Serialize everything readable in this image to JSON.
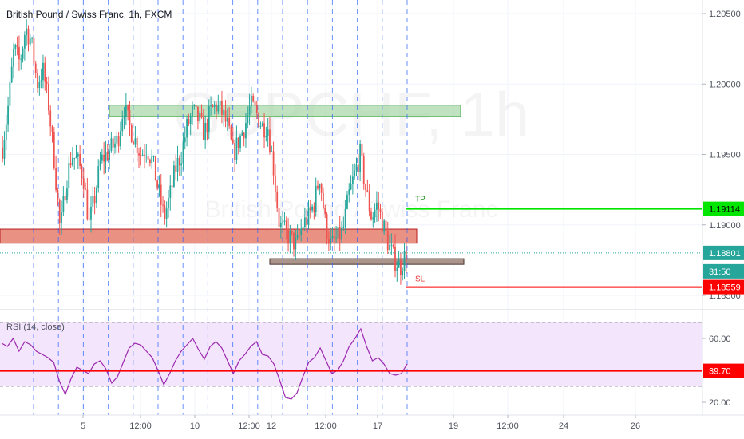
{
  "header": {
    "title": "British Pound / Swiss Franc, 1h, FXCM"
  },
  "watermark": {
    "symbol": "GBPCHF, 1h",
    "name": "British Pound / Swiss Franc"
  },
  "colors": {
    "up": "#26a69a",
    "down": "#ef5350",
    "tp": "#00e600",
    "sl": "#ff0000",
    "rsi_line": "#9c27b0",
    "rsi_band": "#f3e5fb",
    "current": "#26a69a",
    "resistance_fill": "#a5d6a7",
    "support_fill": "#e57f6f",
    "lower_box_fill": "#a1887f"
  },
  "chart_data": [
    {
      "type": "candlestick",
      "symbol": "GBPCHF",
      "interval": "1h",
      "ylim": [
        1.1835,
        1.2065
      ],
      "y_ticks": [
        "1.20500",
        "1.20000",
        "1.19500",
        "1.19000",
        "1.18500"
      ],
      "x_ticks": [
        "5",
        "12:00",
        "10",
        "12:00",
        "12",
        "12:00",
        "17",
        "19",
        "12:00",
        "24",
        "26"
      ],
      "price_path": [
        1.1955,
        1.1985,
        1.2025,
        1.2015,
        1.204,
        1.203,
        1.2,
        1.201,
        1.1985,
        1.1945,
        1.1895,
        1.193,
        1.195,
        1.1945,
        1.1935,
        1.19,
        1.192,
        1.1945,
        1.195,
        1.1955,
        1.196,
        1.1985,
        1.197,
        1.196,
        1.195,
        1.1955,
        1.1945,
        1.1925,
        1.1905,
        1.192,
        1.194,
        1.195,
        1.197,
        1.198,
        1.1975,
        1.1965,
        1.198,
        1.1985,
        1.198,
        1.197,
        1.195,
        1.196,
        1.197,
        1.1985,
        1.198,
        1.197,
        1.197,
        1.194,
        1.19,
        1.1895,
        1.189,
        1.1885,
        1.19,
        1.1905,
        1.1915,
        1.1935,
        1.19,
        1.1885,
        1.189,
        1.1895,
        1.192,
        1.1935,
        1.195,
        1.1925,
        1.1905,
        1.1915,
        1.19,
        1.1885,
        1.1875,
        1.187,
        1.188
      ],
      "zones": [
        {
          "name": "resistance",
          "from": 1.1977,
          "to": 1.1985
        },
        {
          "name": "support",
          "from": 1.1887,
          "to": 1.1897
        },
        {
          "name": "lower-support",
          "from": 1.1872,
          "to": 1.1876
        }
      ],
      "levels": [
        {
          "name": "TP",
          "value": 1.19114,
          "label": "1.19114",
          "text": "TP"
        },
        {
          "name": "SL",
          "value": 1.18559,
          "label": "1.18559",
          "text": "SL"
        },
        {
          "name": "current",
          "value": 1.18801,
          "label": "1.18801"
        }
      ],
      "countdown": "31:50"
    },
    {
      "type": "line",
      "title": "RSI (14, close)",
      "ylim": [
        15,
        75
      ],
      "y_ticks": [
        "60.00",
        "20.00"
      ],
      "band": [
        30,
        70
      ],
      "level": {
        "value": 39.7,
        "label": "39.70"
      },
      "values": [
        57,
        55,
        60,
        52,
        58,
        56,
        52,
        50,
        48,
        45,
        33,
        25,
        35,
        42,
        40,
        38,
        44,
        46,
        41,
        32,
        36,
        45,
        54,
        57,
        56,
        52,
        48,
        40,
        31,
        38,
        46,
        52,
        56,
        60,
        53,
        47,
        55,
        58,
        54,
        46,
        38,
        46,
        50,
        55,
        58,
        50,
        49,
        44,
        34,
        23,
        22,
        26,
        36,
        45,
        48,
        54,
        46,
        38,
        40,
        46,
        55,
        60,
        66,
        55,
        46,
        48,
        44,
        38,
        37,
        38,
        44
      ]
    }
  ]
}
